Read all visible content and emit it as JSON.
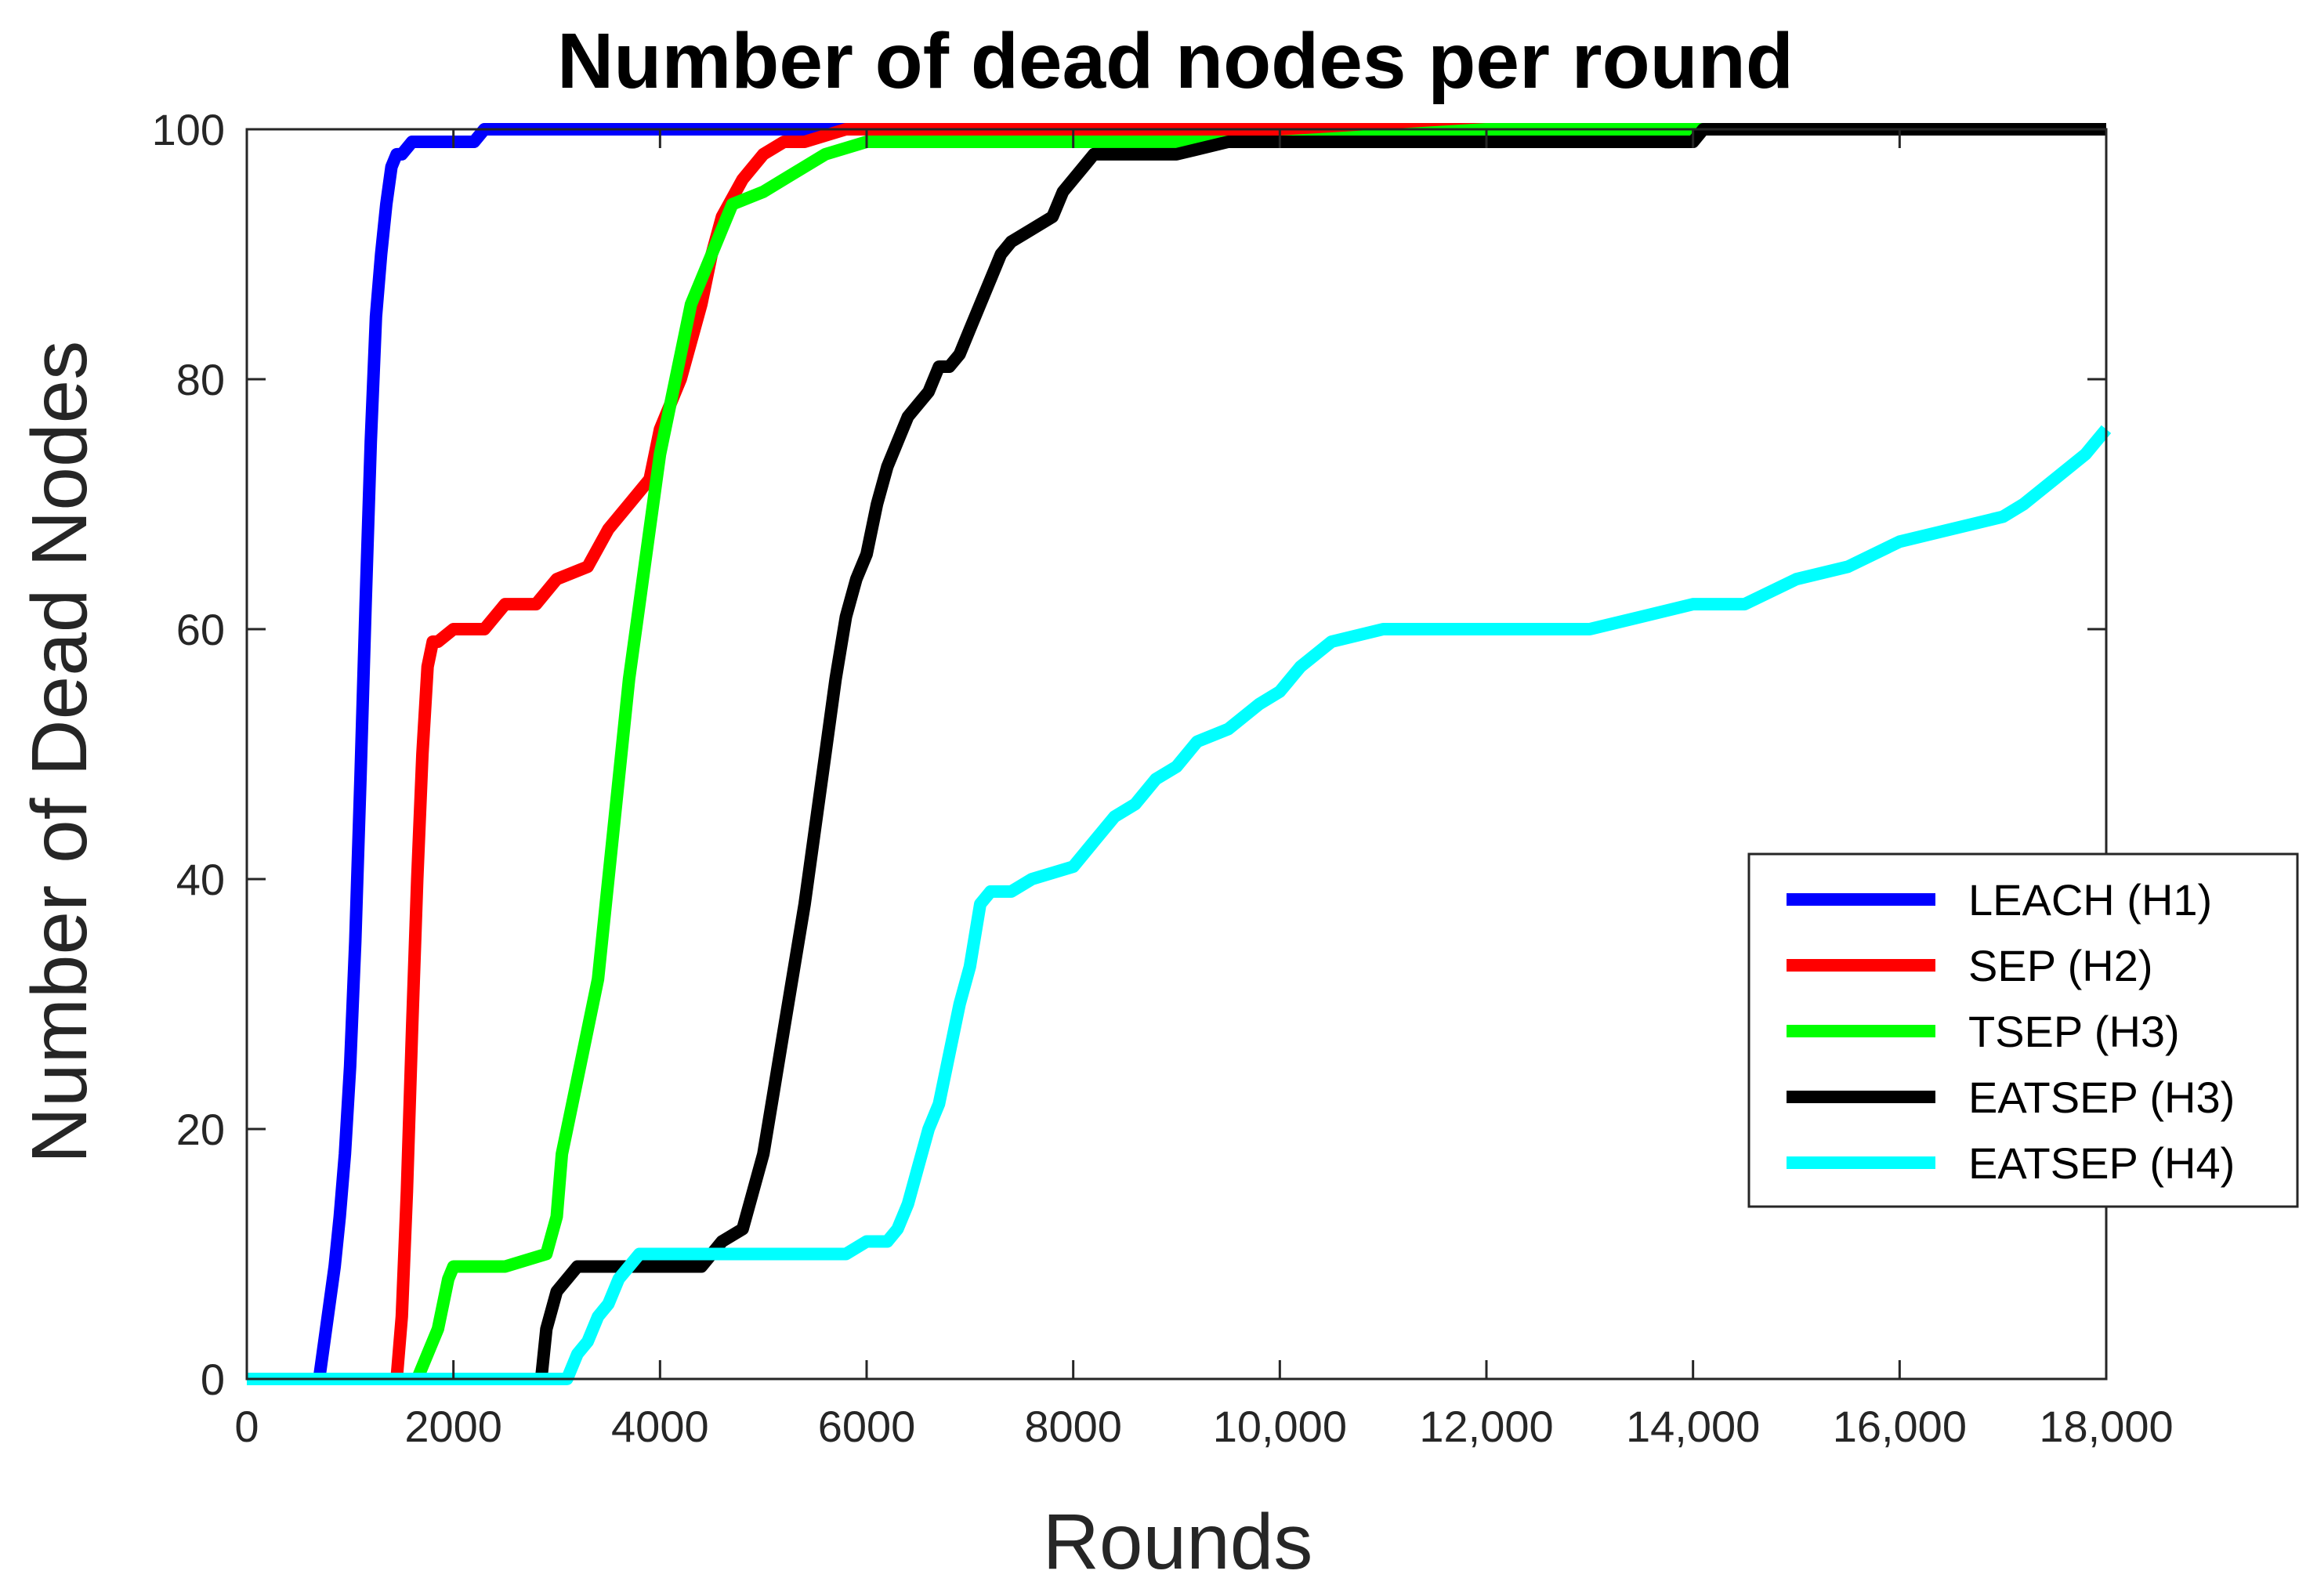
{
  "chart_data": {
    "type": "line",
    "title": "Number of dead nodes per round",
    "xlabel": "Rounds",
    "ylabel": "Number of Dead Nodes",
    "xlim": [
      0,
      18000
    ],
    "ylim": [
      0,
      100
    ],
    "xticks": [
      0,
      2000,
      4000,
      6000,
      8000,
      10000,
      12000,
      14000,
      16000,
      18000
    ],
    "xtick_labels": [
      "0",
      "2000",
      "4000",
      "6000",
      "8000",
      "10,000",
      "12,000",
      "14,000",
      "16,000",
      "18,000"
    ],
    "yticks": [
      0,
      20,
      40,
      60,
      80,
      100
    ],
    "ytick_labels": [
      "0",
      "20",
      "40",
      "60",
      "80",
      "100"
    ],
    "grid": false,
    "legend_position": "right",
    "series": [
      {
        "name": "LEACH (H1)",
        "color": "#0000ff",
        "x": [
          0,
          700,
          750,
          800,
          850,
          900,
          950,
          1000,
          1050,
          1100,
          1150,
          1200,
          1250,
          1300,
          1350,
          1400,
          1450,
          1500,
          1600,
          1800,
          2000,
          2200,
          2300,
          2500,
          18000
        ],
        "y": [
          0,
          0,
          3,
          6,
          9,
          13,
          18,
          25,
          35,
          48,
          62,
          75,
          85,
          90,
          94,
          97,
          98,
          98,
          99,
          99,
          99,
          99,
          100,
          100,
          100
        ]
      },
      {
        "name": "SEP (H2)",
        "color": "#ff0000",
        "x": [
          0,
          1450,
          1500,
          1550,
          1600,
          1650,
          1700,
          1750,
          1800,
          1850,
          2000,
          2300,
          2500,
          2800,
          3000,
          3300,
          3500,
          3700,
          3900,
          4000,
          4200,
          4300,
          4400,
          4500,
          4600,
          4800,
          5000,
          5200,
          5400,
          5800,
          6200,
          18000
        ],
        "y": [
          0,
          0,
          5,
          15,
          28,
          40,
          50,
          57,
          59,
          59,
          60,
          60,
          62,
          62,
          64,
          65,
          68,
          70,
          72,
          76,
          80,
          83,
          86,
          90,
          93,
          96,
          98,
          99,
          99,
          100,
          100,
          100
        ]
      },
      {
        "name": "TSEP (H3)",
        "color": "#00ff00",
        "x": [
          0,
          1650,
          1750,
          1850,
          1950,
          2000,
          2500,
          2900,
          3000,
          3050,
          3150,
          3250,
          3400,
          3500,
          3600,
          3700,
          3800,
          3900,
          4000,
          4100,
          4200,
          4300,
          4400,
          4500,
          4600,
          4700,
          5000,
          5200,
          5600,
          6000,
          7000,
          9000,
          10000,
          12000,
          14000,
          18000
        ],
        "y": [
          0,
          0,
          2,
          4,
          8,
          9,
          9,
          10,
          13,
          18,
          22,
          26,
          32,
          40,
          48,
          56,
          62,
          68,
          74,
          78,
          82,
          86,
          88,
          90,
          92,
          94,
          95,
          96,
          98,
          99,
          99,
          99,
          99,
          100,
          100,
          100
        ]
      },
      {
        "name": "EATSEP (H3)",
        "color": "#000000",
        "x": [
          0,
          2850,
          2900,
          3000,
          3200,
          3500,
          4000,
          4400,
          4600,
          4800,
          4900,
          5000,
          5100,
          5200,
          5300,
          5400,
          5500,
          5600,
          5700,
          5800,
          5900,
          6000,
          6100,
          6200,
          6300,
          6400,
          6500,
          6600,
          6700,
          6800,
          6900,
          7000,
          7100,
          7200,
          7300,
          7400,
          7600,
          7800,
          7900,
          8000,
          8100,
          8200,
          8500,
          9000,
          9500,
          10000,
          12000,
          14000,
          14100,
          18000
        ],
        "y": [
          0,
          0,
          4,
          7,
          9,
          9,
          9,
          9,
          11,
          12,
          15,
          18,
          23,
          28,
          33,
          38,
          44,
          50,
          56,
          61,
          64,
          66,
          70,
          73,
          75,
          77,
          78,
          79,
          81,
          81,
          82,
          84,
          86,
          88,
          90,
          91,
          92,
          93,
          95,
          96,
          97,
          98,
          98,
          98,
          99,
          99,
          99,
          99,
          100,
          100
        ]
      },
      {
        "name": "EATSEP (H4)",
        "color": "#00ffff",
        "x": [
          0,
          3100,
          3200,
          3300,
          3400,
          3500,
          3600,
          3700,
          3800,
          4000,
          4500,
          5000,
          5500,
          5800,
          6000,
          6200,
          6300,
          6400,
          6500,
          6600,
          6700,
          6800,
          6900,
          7000,
          7100,
          7200,
          7400,
          7600,
          8000,
          8200,
          8400,
          8600,
          8800,
          9000,
          9200,
          9500,
          9800,
          10000,
          10200,
          10500,
          11000,
          12000,
          13000,
          13500,
          14000,
          14500,
          15000,
          15500,
          16000,
          16500,
          17000,
          17200,
          17500,
          17800,
          18000
        ],
        "y": [
          0,
          0,
          2,
          3,
          5,
          6,
          8,
          9,
          10,
          10,
          10,
          10,
          10,
          10,
          11,
          11,
          12,
          14,
          17,
          20,
          22,
          26,
          30,
          33,
          38,
          39,
          39,
          40,
          41,
          43,
          45,
          46,
          48,
          49,
          51,
          52,
          54,
          55,
          57,
          59,
          60,
          60,
          60,
          61,
          62,
          62,
          64,
          65,
          67,
          68,
          69,
          70,
          72,
          74,
          76
        ]
      }
    ]
  }
}
